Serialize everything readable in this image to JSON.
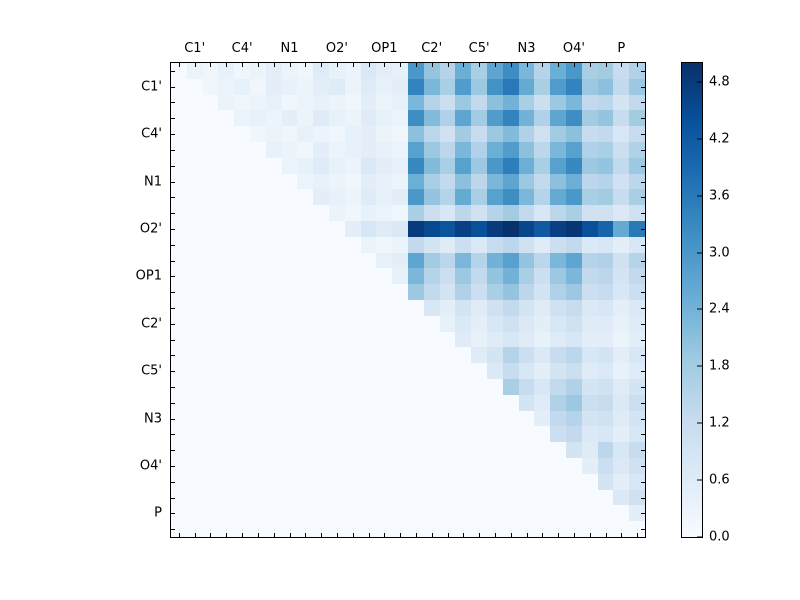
{
  "figure": {
    "background_color": "#ffffff",
    "axis_color": "#000000"
  },
  "chart_data": {
    "type": "heatmap",
    "title": "",
    "xlabel": "",
    "ylabel": "",
    "colormap": "Blues",
    "colormap_anchors": [
      "#f7fbff",
      "#deebf7",
      "#c6dbef",
      "#9ecae1",
      "#6baed6",
      "#4292c6",
      "#2171b5",
      "#08519c",
      "#08306b"
    ],
    "vmin": 0.0,
    "vmax": 5.0,
    "n": 30,
    "group_size": 3,
    "x_tick_labels": [
      "C1'",
      "C4'",
      "N1",
      "O2'",
      "OP1",
      "C2'",
      "C5'",
      "N3",
      "O4'",
      "P"
    ],
    "y_tick_labels": [
      "C1'",
      "C4'",
      "N1",
      "O2'",
      "OP1",
      "C2'",
      "C5'",
      "N3",
      "O4'",
      "P"
    ],
    "colorbar_tick_labels": [
      "0.0",
      "0.6",
      "1.2",
      "1.8",
      "2.4",
      "3.0",
      "3.6",
      "4.2",
      "4.8"
    ],
    "legend_position": "right-colorbar",
    "grid": false,
    "matrix": [
      [
        0,
        0.3,
        0.2,
        0.4,
        0.2,
        0.3,
        0.5,
        0.3,
        0.2,
        0.6,
        0.4,
        0.3,
        0.7,
        0.5,
        0.4,
        3.0,
        2.0,
        1.5,
        2.5,
        1.7,
        2.7,
        3.2,
        2.3,
        1.5,
        2.5,
        3.0,
        1.7,
        1.8,
        1.2,
        1.6
      ],
      [
        0,
        0,
        0.2,
        0.3,
        0.4,
        0.2,
        0.5,
        0.4,
        0.3,
        0.5,
        0.6,
        0.3,
        0.6,
        0.4,
        0.5,
        3.4,
        2.3,
        1.7,
        2.9,
        1.9,
        3.1,
        3.6,
        2.6,
        1.7,
        2.9,
        3.4,
        1.9,
        2.1,
        1.3,
        1.9
      ],
      [
        0,
        0,
        0,
        0.3,
        0.2,
        0.3,
        0.4,
        0.2,
        0.3,
        0.4,
        0.3,
        0.2,
        0.5,
        0.3,
        0.4,
        2.3,
        1.5,
        1.1,
        1.9,
        1.3,
        2.1,
        2.4,
        1.7,
        1.1,
        1.9,
        2.3,
        1.3,
        1.4,
        0.9,
        1.3
      ],
      [
        0,
        0,
        0,
        0,
        0.3,
        0.4,
        0.3,
        0.5,
        0.3,
        0.6,
        0.4,
        0.3,
        0.6,
        0.4,
        0.3,
        3.2,
        2.2,
        1.6,
        2.7,
        1.8,
        2.9,
        3.4,
        2.4,
        1.6,
        2.7,
        3.2,
        1.8,
        2.0,
        1.2,
        1.8
      ],
      [
        0,
        0,
        0,
        0,
        0,
        0.2,
        0.3,
        0.2,
        0.4,
        0.3,
        0.2,
        0.4,
        0.5,
        0.3,
        0.2,
        2.1,
        1.4,
        1.0,
        1.8,
        1.2,
        1.9,
        2.2,
        1.6,
        1.0,
        1.8,
        2.1,
        1.2,
        1.3,
        0.8,
        1.2
      ],
      [
        0,
        0,
        0,
        0,
        0,
        0,
        0.4,
        0.3,
        0.2,
        0.5,
        0.3,
        0.4,
        0.5,
        0.4,
        0.3,
        2.8,
        1.9,
        1.4,
        2.3,
        1.6,
        2.5,
        2.9,
        2.1,
        1.4,
        2.3,
        2.8,
        1.6,
        1.7,
        1.1,
        1.6
      ],
      [
        0,
        0,
        0,
        0,
        0,
        0,
        0,
        0.3,
        0.4,
        0.6,
        0.4,
        0.3,
        0.7,
        0.5,
        0.4,
        3.3,
        2.2,
        1.7,
        2.8,
        1.9,
        3.0,
        3.5,
        2.5,
        1.7,
        2.8,
        3.3,
        1.9,
        2.0,
        1.3,
        1.9
      ],
      [
        0,
        0,
        0,
        0,
        0,
        0,
        0,
        0,
        0.3,
        0.4,
        0.3,
        0.2,
        0.5,
        0.4,
        0.3,
        2.5,
        1.7,
        1.3,
        2.1,
        1.4,
        2.3,
        2.7,
        1.9,
        1.3,
        2.1,
        2.5,
        1.4,
        1.5,
        1.0,
        1.4
      ],
      [
        0,
        0,
        0,
        0,
        0,
        0,
        0,
        0,
        0,
        0.5,
        0.4,
        0.3,
        0.6,
        0.4,
        0.5,
        3.0,
        2.0,
        1.5,
        2.6,
        1.7,
        2.8,
        3.2,
        2.3,
        1.5,
        2.6,
        3.0,
        1.7,
        1.8,
        1.2,
        1.7
      ],
      [
        0,
        0,
        0,
        0,
        0,
        0,
        0,
        0,
        0,
        0,
        0.3,
        0.2,
        0.4,
        0.3,
        0.2,
        1.7,
        1.1,
        0.8,
        1.4,
        1.0,
        1.5,
        1.8,
        1.3,
        0.8,
        1.4,
        1.7,
        1.0,
        1.0,
        0.7,
        1.0
      ],
      [
        0,
        0,
        0,
        0,
        0,
        0,
        0,
        0,
        0,
        0,
        0,
        0.5,
        0.8,
        0.6,
        0.7,
        4.8,
        4.5,
        4.3,
        4.7,
        4.4,
        4.8,
        5.0,
        4.6,
        4.2,
        4.7,
        4.9,
        4.4,
        4.0,
        2.6,
        3.6
      ],
      [
        0,
        0,
        0,
        0,
        0,
        0,
        0,
        0,
        0,
        0,
        0,
        0,
        0.3,
        0.2,
        0.3,
        1.3,
        0.9,
        0.6,
        1.1,
        0.7,
        1.2,
        1.4,
        1.0,
        0.6,
        1.1,
        1.3,
        0.7,
        0.8,
        0.5,
        0.8
      ],
      [
        0,
        0,
        0,
        0,
        0,
        0,
        0,
        0,
        0,
        0,
        0,
        0,
        0,
        0.4,
        0.5,
        2.7,
        1.8,
        1.4,
        2.3,
        1.5,
        2.4,
        2.8,
        2.0,
        1.4,
        2.3,
        2.7,
        1.5,
        1.6,
        1.0,
        1.5
      ],
      [
        0,
        0,
        0,
        0,
        0,
        0,
        0,
        0,
        0,
        0,
        0,
        0,
        0,
        0,
        0.4,
        2.3,
        1.5,
        1.1,
        1.9,
        1.3,
        2.0,
        2.4,
        1.7,
        1.1,
        1.9,
        2.3,
        1.3,
        1.4,
        0.9,
        1.3
      ],
      [
        0,
        0,
        0,
        0,
        0,
        0,
        0,
        0,
        0,
        0,
        0,
        0,
        0,
        0,
        0,
        1.9,
        1.3,
        0.9,
        1.6,
        1.1,
        1.7,
        2.0,
        1.4,
        0.9,
        1.6,
        1.9,
        1.1,
        1.2,
        0.8,
        1.1
      ],
      [
        0,
        0,
        0,
        0,
        0,
        0,
        0,
        0,
        0,
        0,
        0,
        0,
        0,
        0,
        0,
        0,
        0.8,
        0.5,
        0.9,
        0.6,
        1.0,
        1.3,
        0.9,
        0.6,
        1.0,
        1.2,
        0.7,
        0.8,
        0.5,
        0.7
      ],
      [
        0,
        0,
        0,
        0,
        0,
        0,
        0,
        0,
        0,
        0,
        0,
        0,
        0,
        0,
        0,
        0,
        0,
        0.4,
        0.7,
        0.5,
        0.8,
        1.0,
        0.7,
        0.5,
        0.8,
        1.0,
        0.6,
        0.6,
        0.4,
        0.6
      ],
      [
        0,
        0,
        0,
        0,
        0,
        0,
        0,
        0,
        0,
        0,
        0,
        0,
        0,
        0,
        0,
        0,
        0,
        0,
        0.6,
        0.4,
        0.6,
        0.8,
        0.6,
        0.4,
        0.6,
        0.8,
        0.5,
        0.5,
        0.3,
        0.5
      ],
      [
        0,
        0,
        0,
        0,
        0,
        0,
        0,
        0,
        0,
        0,
        0,
        0,
        0,
        0,
        0,
        0,
        0,
        0,
        0,
        0.6,
        0.9,
        1.5,
        1.1,
        0.7,
        1.2,
        1.4,
        0.8,
        0.9,
        0.5,
        0.8
      ],
      [
        0,
        0,
        0,
        0,
        0,
        0,
        0,
        0,
        0,
        0,
        0,
        0,
        0,
        0,
        0,
        0,
        0,
        0,
        0,
        0,
        0.7,
        1.2,
        0.8,
        0.5,
        0.9,
        1.1,
        0.6,
        0.7,
        0.4,
        0.6
      ],
      [
        0,
        0,
        0,
        0,
        0,
        0,
        0,
        0,
        0,
        0,
        0,
        0,
        0,
        0,
        0,
        0,
        0,
        0,
        0,
        0,
        0,
        1.7,
        1.2,
        0.8,
        1.3,
        1.6,
        0.9,
        1.0,
        0.6,
        0.9
      ],
      [
        0,
        0,
        0,
        0,
        0,
        0,
        0,
        0,
        0,
        0,
        0,
        0,
        0,
        0,
        0,
        0,
        0,
        0,
        0,
        0,
        0,
        0,
        0.9,
        0.6,
        1.6,
        1.9,
        1.1,
        1.2,
        0.7,
        1.1
      ],
      [
        0,
        0,
        0,
        0,
        0,
        0,
        0,
        0,
        0,
        0,
        0,
        0,
        0,
        0,
        0,
        0,
        0,
        0,
        0,
        0,
        0,
        0,
        0,
        0.5,
        1.3,
        1.5,
        0.9,
        1.0,
        0.6,
        0.9
      ],
      [
        0,
        0,
        0,
        0,
        0,
        0,
        0,
        0,
        0,
        0,
        0,
        0,
        0,
        0,
        0,
        0,
        0,
        0,
        0,
        0,
        0,
        0,
        0,
        0,
        1.1,
        1.3,
        0.7,
        0.8,
        0.5,
        0.8
      ],
      [
        0,
        0,
        0,
        0,
        0,
        0,
        0,
        0,
        0,
        0,
        0,
        0,
        0,
        0,
        0,
        0,
        0,
        0,
        0,
        0,
        0,
        0,
        0,
        0,
        0,
        0.9,
        0.6,
        1.4,
        0.8,
        1.2
      ],
      [
        0,
        0,
        0,
        0,
        0,
        0,
        0,
        0,
        0,
        0,
        0,
        0,
        0,
        0,
        0,
        0,
        0,
        0,
        0,
        0,
        0,
        0,
        0,
        0,
        0,
        0,
        0.5,
        1.1,
        0.7,
        1.0
      ],
      [
        0,
        0,
        0,
        0,
        0,
        0,
        0,
        0,
        0,
        0,
        0,
        0,
        0,
        0,
        0,
        0,
        0,
        0,
        0,
        0,
        0,
        0,
        0,
        0,
        0,
        0,
        0,
        0.9,
        0.5,
        0.8
      ],
      [
        0,
        0,
        0,
        0,
        0,
        0,
        0,
        0,
        0,
        0,
        0,
        0,
        0,
        0,
        0,
        0,
        0,
        0,
        0,
        0,
        0,
        0,
        0,
        0,
        0,
        0,
        0,
        0,
        0.7,
        1.0
      ],
      [
        0,
        0,
        0,
        0,
        0,
        0,
        0,
        0,
        0,
        0,
        0,
        0,
        0,
        0,
        0,
        0,
        0,
        0,
        0,
        0,
        0,
        0,
        0,
        0,
        0,
        0,
        0,
        0,
        0,
        0.5
      ],
      [
        0,
        0,
        0,
        0,
        0,
        0,
        0,
        0,
        0,
        0,
        0,
        0,
        0,
        0,
        0,
        0,
        0,
        0,
        0,
        0,
        0,
        0,
        0,
        0,
        0,
        0,
        0,
        0,
        0,
        0
      ]
    ]
  }
}
